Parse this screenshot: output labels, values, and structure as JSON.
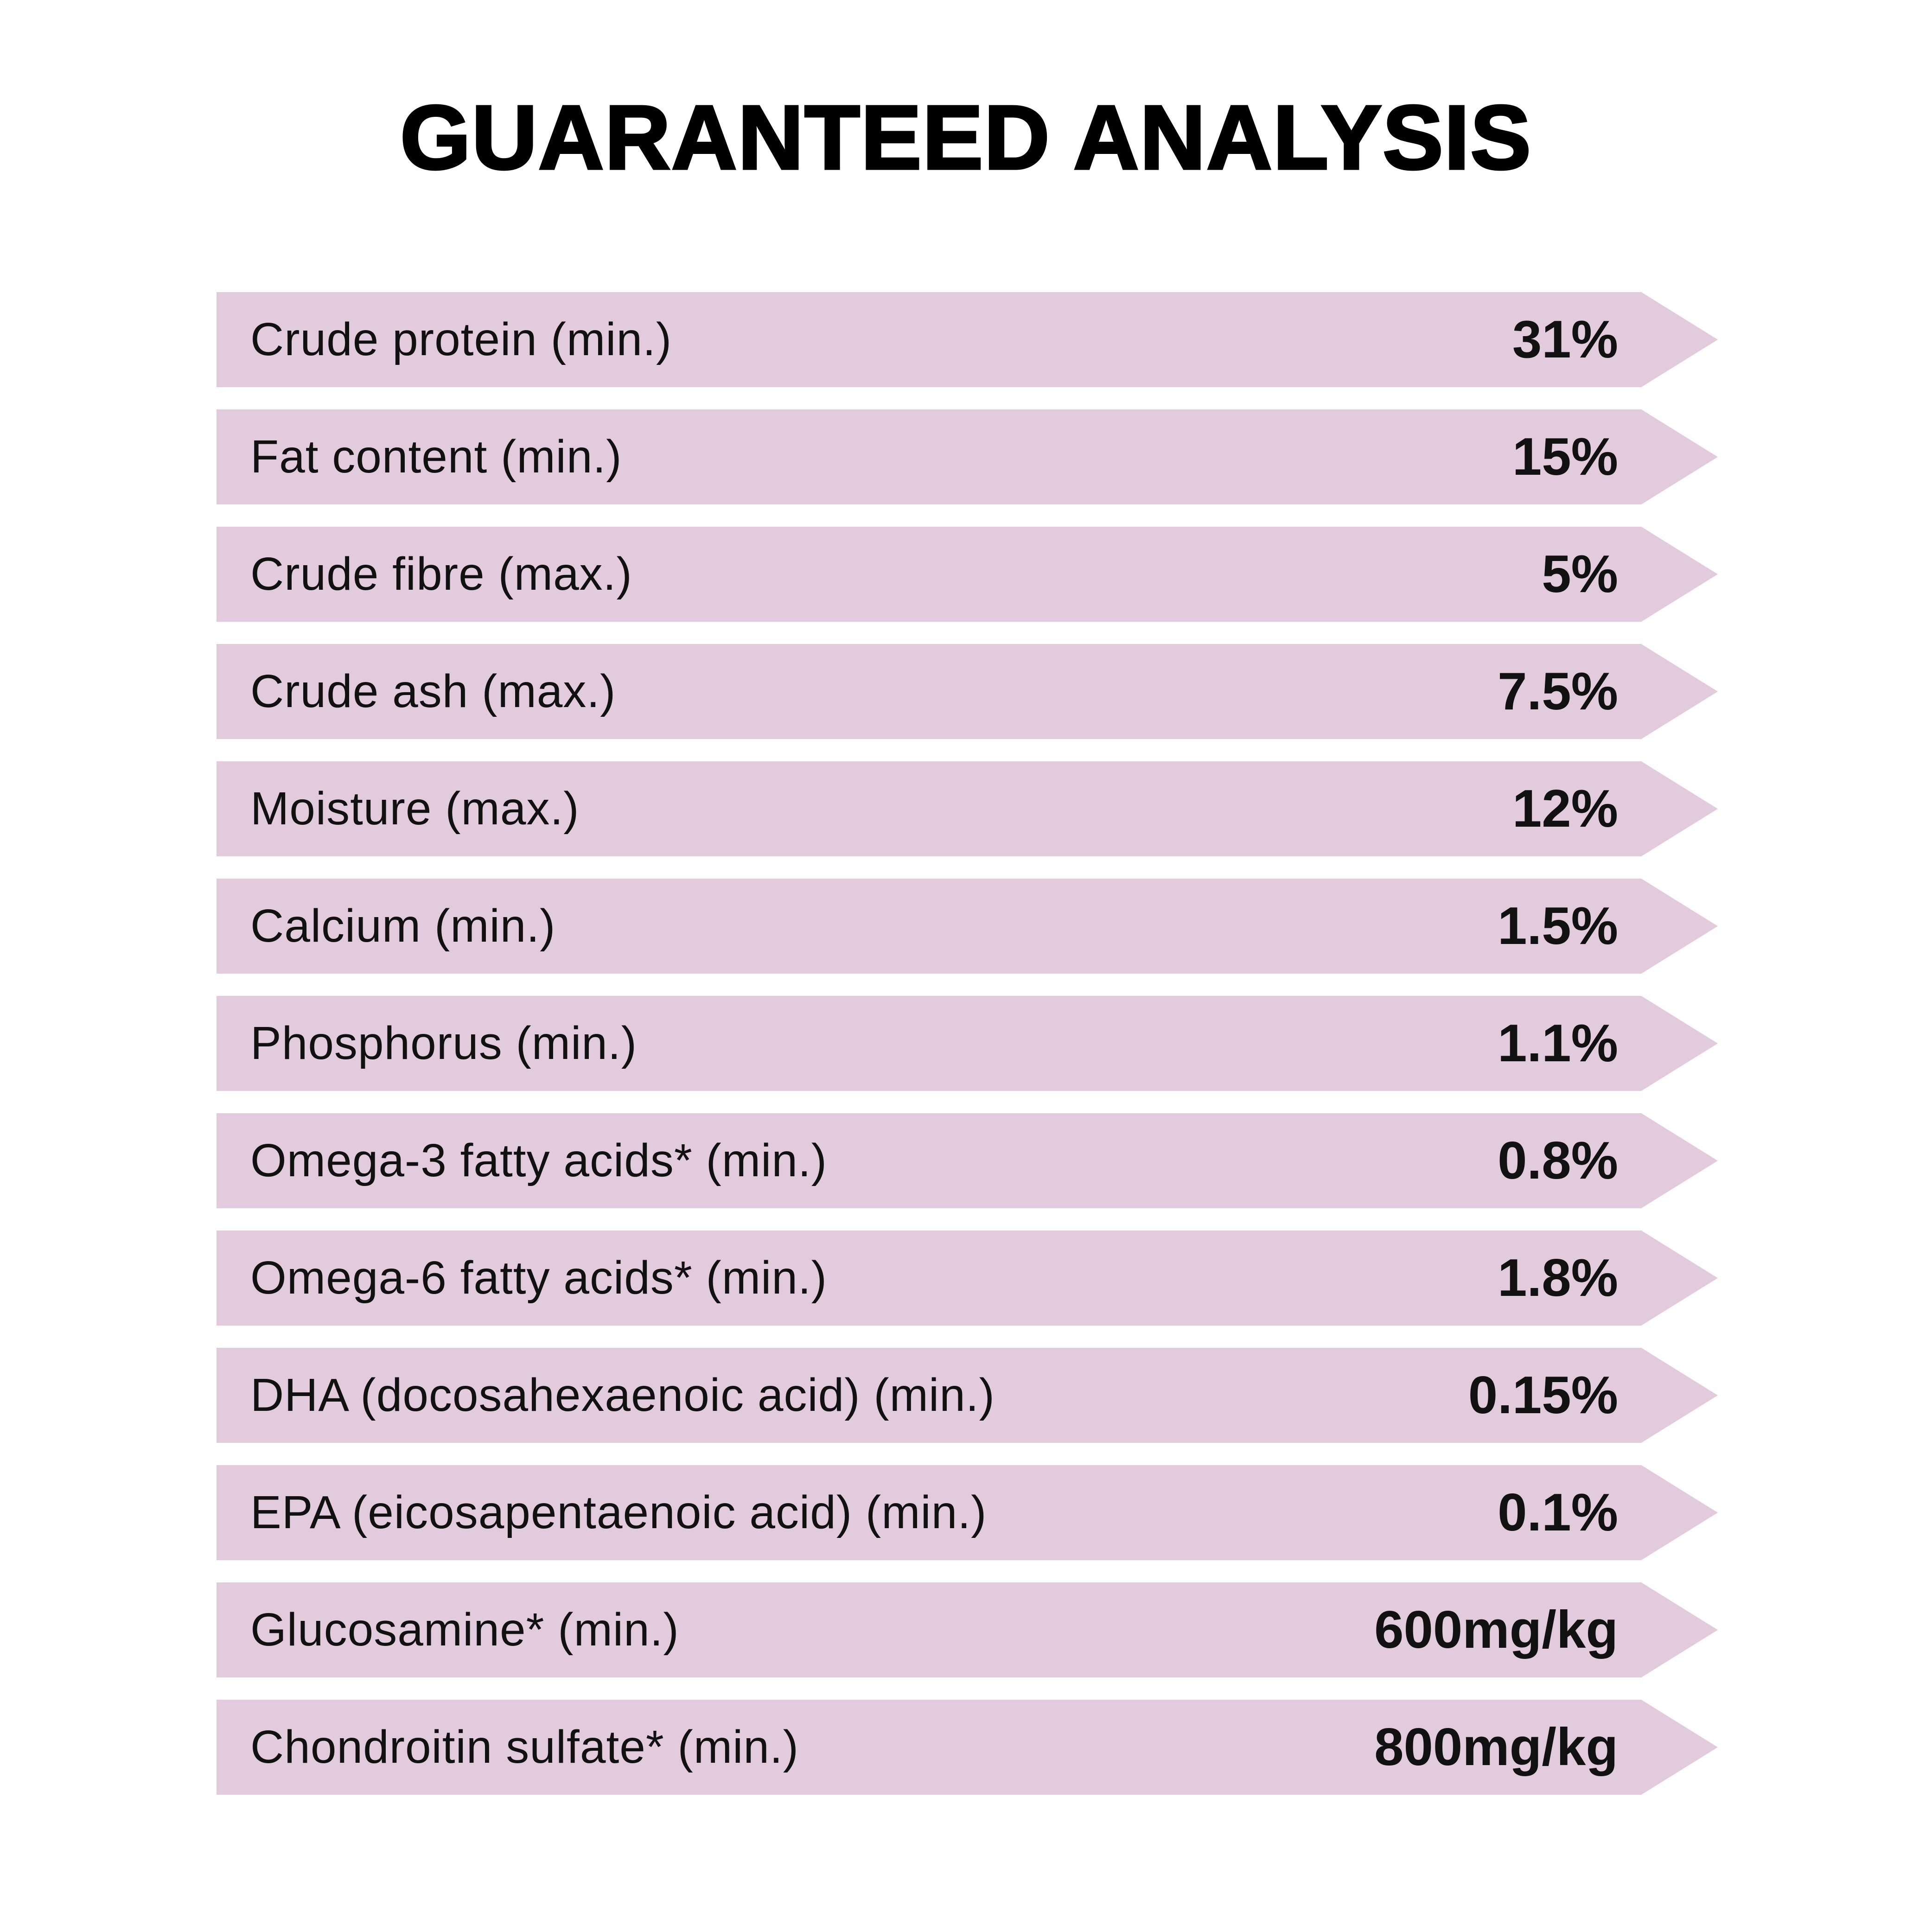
{
  "title": "GUARANTEED ANALYSIS",
  "colors": {
    "band": "#e3cbde",
    "text": "#111111",
    "background": "#ffffff"
  },
  "rows": [
    {
      "label": "Crude protein (min.)",
      "value": "31%"
    },
    {
      "label": "Fat content (min.)",
      "value": "15%"
    },
    {
      "label": "Crude fibre (max.)",
      "value": "5%"
    },
    {
      "label": "Crude ash (max.)",
      "value": "7.5%"
    },
    {
      "label": "Moisture (max.)",
      "value": "12%"
    },
    {
      "label": "Calcium (min.)",
      "value": "1.5%"
    },
    {
      "label": "Phosphorus (min.)",
      "value": "1.1%"
    },
    {
      "label": "Omega-3 fatty acids* (min.)",
      "value": "0.8%"
    },
    {
      "label": "Omega-6 fatty acids* (min.)",
      "value": "1.8%"
    },
    {
      "label": "DHA (docosahexaenoic acid) (min.)",
      "value": "0.15%"
    },
    {
      "label": "EPA (eicosapentaenoic acid) (min.)",
      "value": "0.1%"
    },
    {
      "label": "Glucosamine* (min.)",
      "value": "600mg/kg"
    },
    {
      "label": "Chondroitin sulfate* (min.)",
      "value": "800mg/kg"
    }
  ]
}
